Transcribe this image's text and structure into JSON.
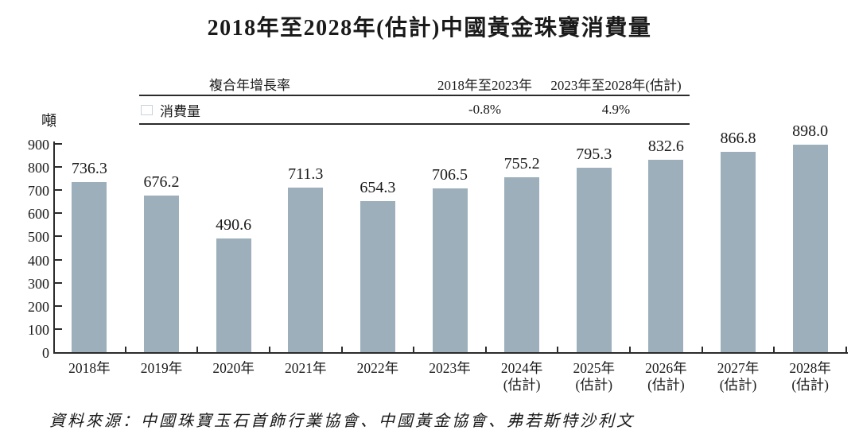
{
  "title": "2018年至2028年(估計)中國黃金珠寶消費量",
  "y_axis_unit": "噸",
  "legend_table": {
    "header_left": "複合年增長率",
    "period1_header": "2018年至2023年",
    "period2_header": "2023年至2028年(估計)",
    "series_label": "消費量",
    "period1_cagr": "-0.8%",
    "period2_cagr": "4.9%"
  },
  "source_note": "資料來源：中國珠寶玉石首飾行業協會、中國黃金協會、弗若斯特沙利文",
  "colors": {
    "bar_fill": "#9cafbb",
    "legend_square_fill": "#9cafbb",
    "axis_line": "#2b2b2b",
    "text": "#1a1a1a",
    "background": "#ffffff"
  },
  "chart_data": {
    "type": "bar",
    "title": "2018年至2028年(估計)中國黃金珠寶消費量",
    "categories": [
      "2018年",
      "2019年",
      "2020年",
      "2021年",
      "2022年",
      "2023年",
      "2024年\n(估計)",
      "2025年\n(估計)",
      "2026年\n(估計)",
      "2027年\n(估計)",
      "2028年\n(估計)"
    ],
    "values": [
      736.3,
      676.2,
      490.6,
      711.3,
      654.3,
      706.5,
      755.2,
      795.3,
      832.6,
      866.8,
      898.0
    ],
    "value_labels": [
      "736.3",
      "676.2",
      "490.6",
      "711.3",
      "654.3",
      "706.5",
      "755.2",
      "795.3",
      "832.6",
      "866.8",
      "898.0"
    ],
    "ylabel": "噸",
    "xlabel": "",
    "ylim": [
      0,
      900
    ],
    "yticks": [
      0,
      100,
      200,
      300,
      400,
      500,
      600,
      700,
      800,
      900
    ],
    "grid": false,
    "legend_position": "top-table",
    "series": [
      {
        "name": "消費量",
        "cagr_2018_2023": "-0.8%",
        "cagr_2023_2028_est": "4.9%"
      }
    ]
  }
}
